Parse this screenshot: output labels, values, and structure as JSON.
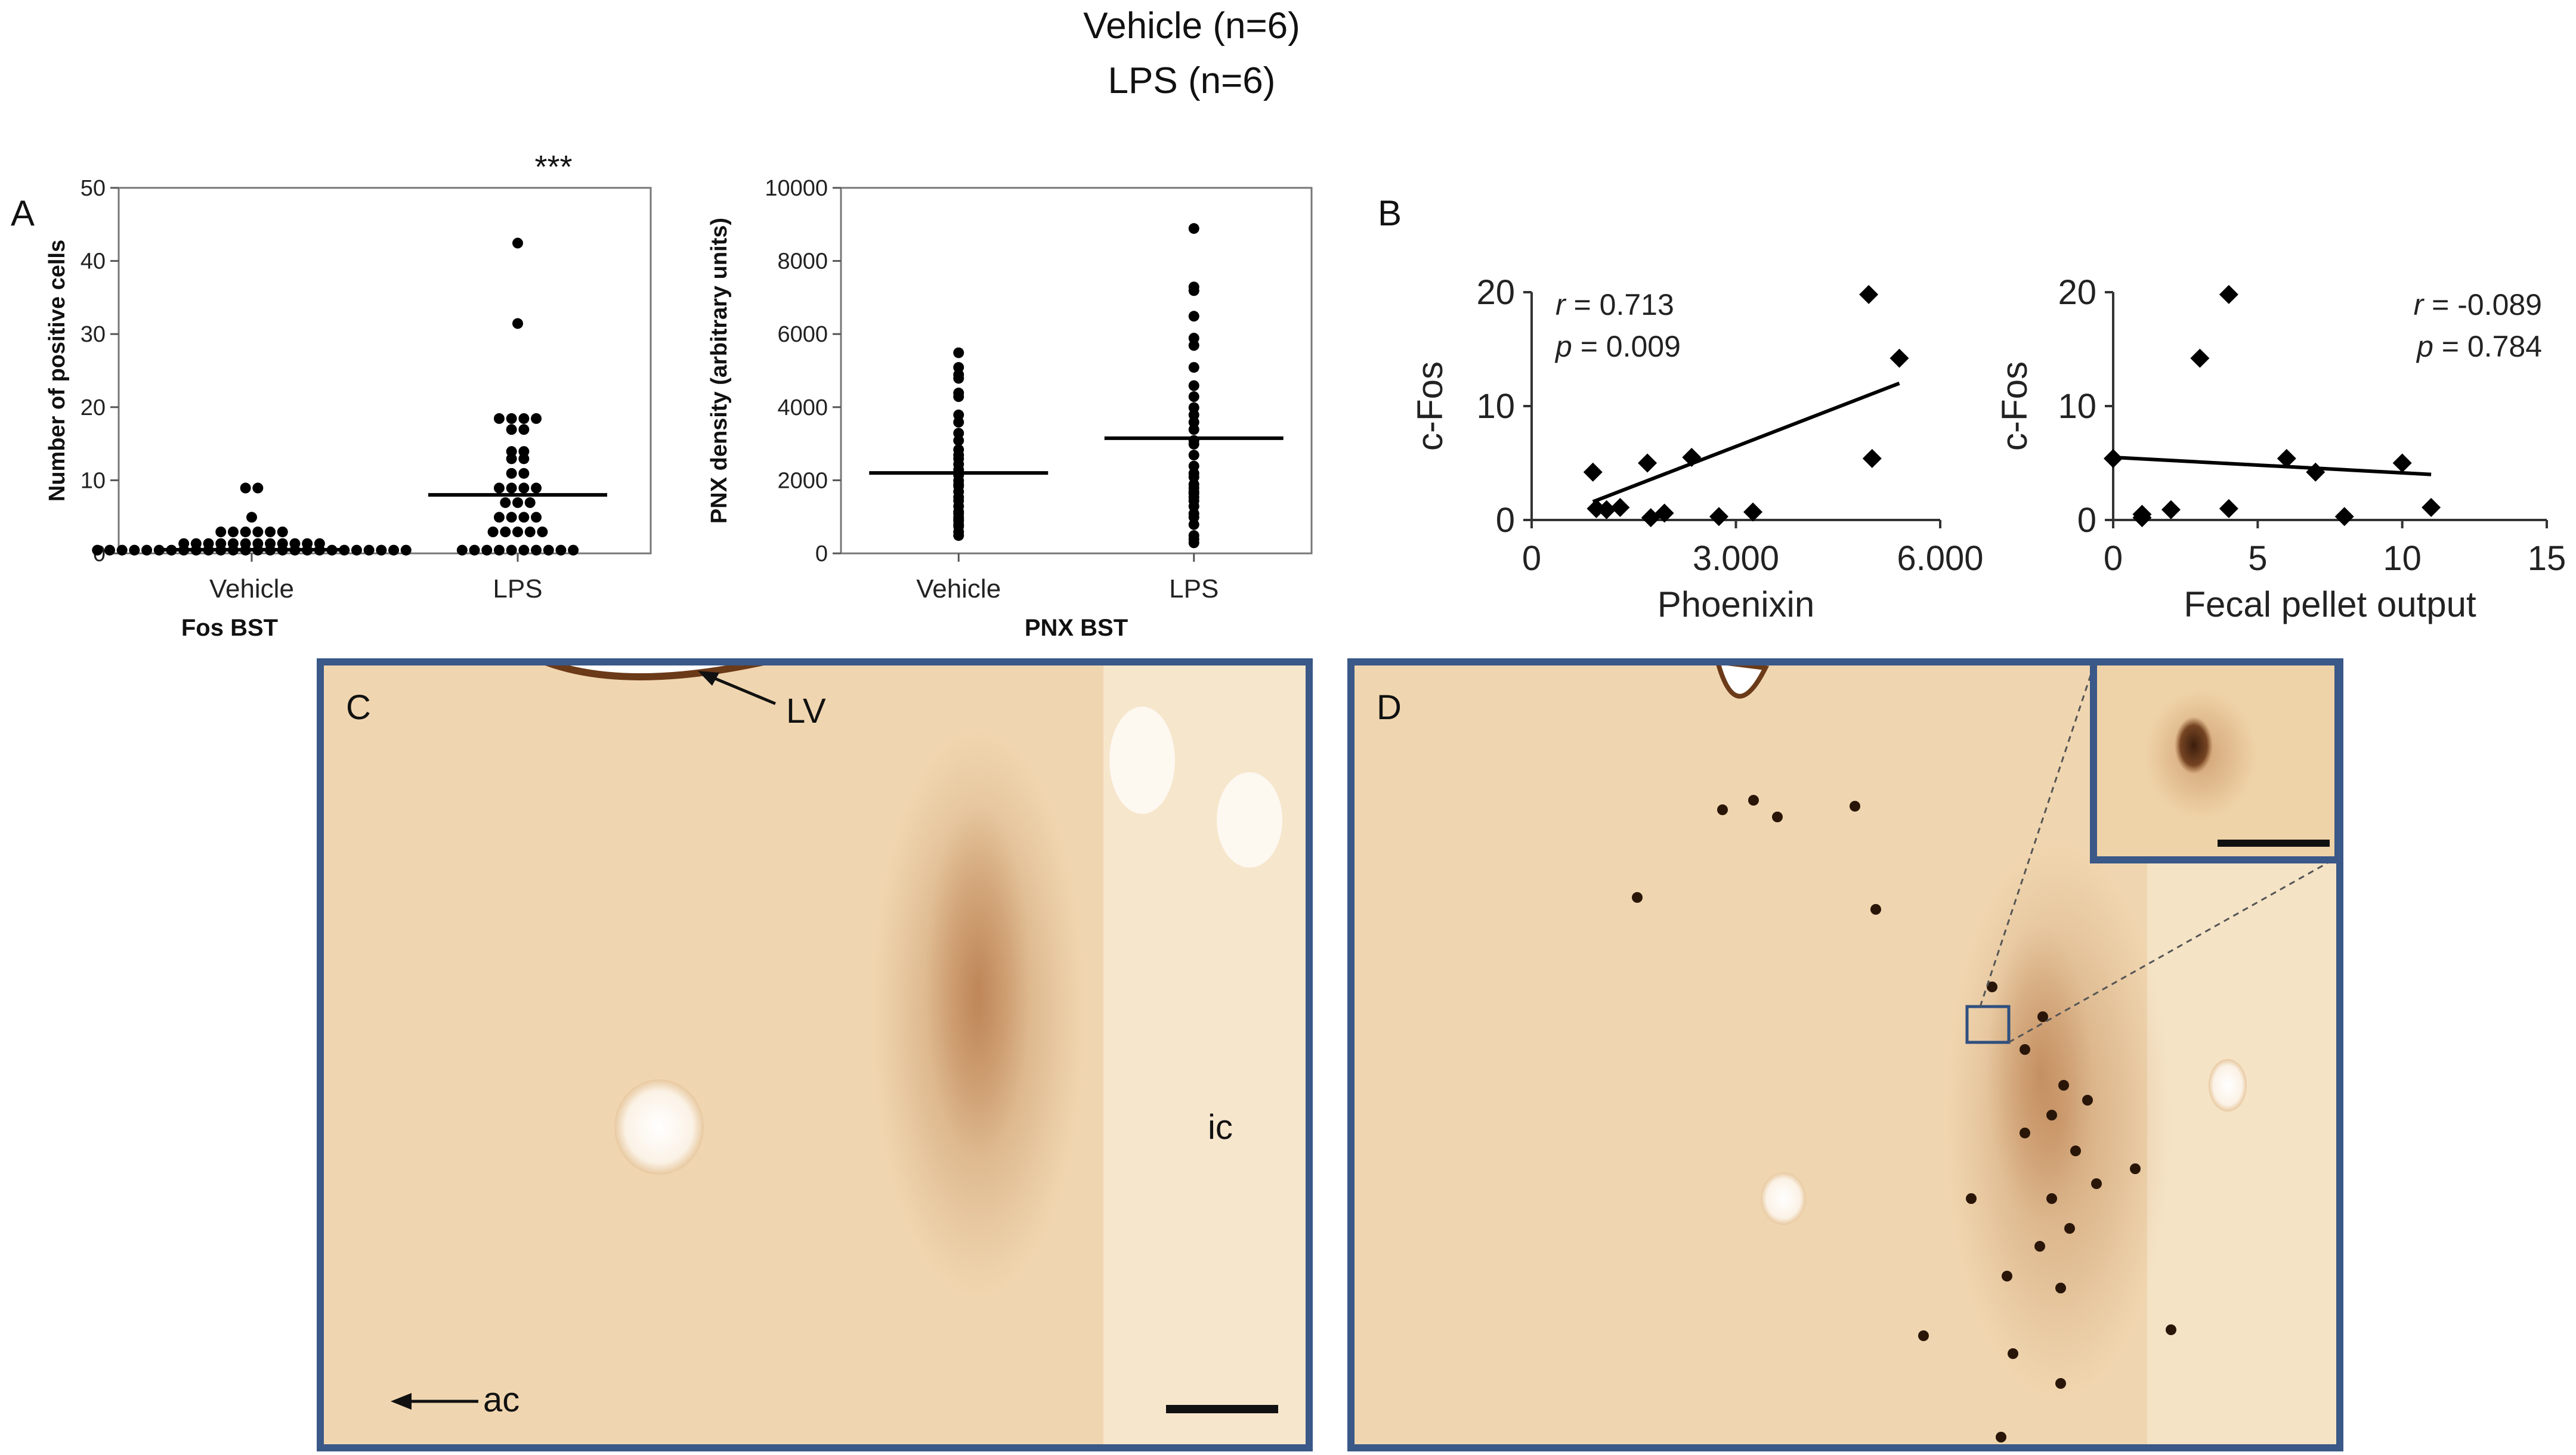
{
  "header": {
    "line1": "Vehicle (n=6)",
    "line2": "LPS (n=6)"
  },
  "panel_letters": {
    "a": "A",
    "b": "B",
    "c": "C",
    "d": "D"
  },
  "significance": "***",
  "histology": {
    "label_lv": "LV",
    "label_ic": "ic",
    "label_ac": "ac",
    "colors": {
      "tissue": "#f0d6b0",
      "frame": "#3a5888",
      "stain": "#9a5a2e"
    }
  },
  "chart_data": [
    {
      "type": "scatter",
      "panel": "A-left",
      "title": "Fos BST",
      "ylabel": "Number of positive cells",
      "categories": [
        "Vehicle",
        "LPS"
      ],
      "ylim": [
        0,
        50
      ],
      "yticks": [
        0,
        10,
        20,
        30,
        40,
        50
      ],
      "box": true,
      "series": [
        {
          "category": "Vehicle",
          "median": 0.5,
          "values": [
            0,
            0,
            0,
            0,
            0,
            0,
            0,
            0,
            0,
            0,
            0,
            0,
            0,
            0,
            0,
            0,
            0,
            0,
            0,
            0,
            0,
            0,
            0,
            0,
            0,
            0,
            0.9,
            0.9,
            0.9,
            0.9,
            0.9,
            0.9,
            0.9,
            0.9,
            0.9,
            0.9,
            0.9,
            0.9,
            2.5,
            2.5,
            2.5,
            2.5,
            2.5,
            2.5,
            4.5,
            8.5,
            8.5
          ]
        },
        {
          "category": "LPS",
          "median": 8,
          "values": [
            0,
            0,
            0,
            0,
            0,
            0,
            0,
            0,
            0,
            0,
            2.5,
            2.5,
            2.5,
            2.5,
            2.5,
            4.5,
            4.5,
            4.5,
            4.5,
            6.5,
            6.5,
            6.5,
            8.5,
            8.5,
            8.5,
            8.5,
            10.5,
            10.5,
            12.5,
            12.5,
            13.5,
            13.5,
            16.5,
            16.5,
            18,
            18,
            18,
            18,
            31,
            42
          ]
        }
      ]
    },
    {
      "type": "scatter",
      "panel": "A-right",
      "title": "PNX BST",
      "ylabel": "PNX density (arbitrary units)",
      "categories": [
        "Vehicle",
        "LPS"
      ],
      "ylim": [
        0,
        10000
      ],
      "yticks": [
        0,
        2000,
        4000,
        6000,
        8000,
        10000
      ],
      "box": true,
      "series": [
        {
          "category": "Vehicle",
          "median": 2200,
          "values": [
            400,
            500,
            650,
            700,
            800,
            850,
            900,
            1000,
            1050,
            1200,
            1350,
            1450,
            1600,
            1750,
            1800,
            1900,
            2050,
            2200,
            2350,
            2500,
            2600,
            2750,
            3000,
            3200,
            3500,
            3700,
            4200,
            4300,
            4700,
            4800,
            5000,
            5400
          ]
        },
        {
          "category": "LPS",
          "median": 3150,
          "values": [
            200,
            300,
            400,
            700,
            900,
            1000,
            1200,
            1350,
            1450,
            1550,
            1600,
            1700,
            1800,
            2000,
            2100,
            2300,
            2600,
            2900,
            3000,
            3300,
            3500,
            3700,
            3900,
            4200,
            4500,
            5000,
            5600,
            5800,
            6400,
            7100,
            7200,
            8800
          ]
        }
      ]
    },
    {
      "type": "scatter",
      "panel": "B-left",
      "xlabel": "Phoenixin",
      "ylabel": "c-Fos",
      "xlim": [
        0,
        6000
      ],
      "ylim": [
        0,
        20
      ],
      "xtick_labels": [
        "0",
        "3.000",
        "6.000"
      ],
      "xticks": [
        0,
        3000,
        6000
      ],
      "yticks": [
        0,
        10,
        20
      ],
      "stats": {
        "r_label": "r",
        "r_value": " = 0.713",
        "p_label": "p",
        "p_value": " = 0.009"
      },
      "points": [
        [
          900,
          4.2
        ],
        [
          950,
          1.0
        ],
        [
          1100,
          0.9
        ],
        [
          1300,
          1.1
        ],
        [
          1700,
          5.0
        ],
        [
          1750,
          0.2
        ],
        [
          1950,
          0.6
        ],
        [
          2350,
          5.5
        ],
        [
          2750,
          0.3
        ],
        [
          3250,
          0.7
        ],
        [
          4950,
          19.8
        ],
        [
          5000,
          5.4
        ],
        [
          5400,
          14.2
        ]
      ],
      "trendline": [
        [
          900,
          1.6
        ],
        [
          5400,
          12.0
        ]
      ]
    },
    {
      "type": "scatter",
      "panel": "B-right",
      "xlabel": "Fecal pellet output",
      "ylabel": "c-Fos",
      "xlim": [
        0,
        15
      ],
      "ylim": [
        0,
        20
      ],
      "xticks": [
        0,
        5,
        10,
        15
      ],
      "xtick_labels": [
        "0",
        "5",
        "10",
        "15"
      ],
      "yticks": [
        0,
        10,
        20
      ],
      "stats": {
        "r_label": "r",
        "r_value": " = -0.089",
        "p_label": "p",
        "p_value": " = 0.784"
      },
      "points": [
        [
          0,
          5.4
        ],
        [
          1,
          0.2
        ],
        [
          1,
          0.5
        ],
        [
          2,
          0.9
        ],
        [
          3,
          14.2
        ],
        [
          4,
          19.8
        ],
        [
          4,
          1.0
        ],
        [
          6,
          5.4
        ],
        [
          7,
          4.2
        ],
        [
          8,
          0.3
        ],
        [
          10,
          5.0
        ],
        [
          11,
          1.1
        ]
      ],
      "trendline": [
        [
          0,
          5.5
        ],
        [
          11,
          4.0
        ]
      ]
    }
  ]
}
